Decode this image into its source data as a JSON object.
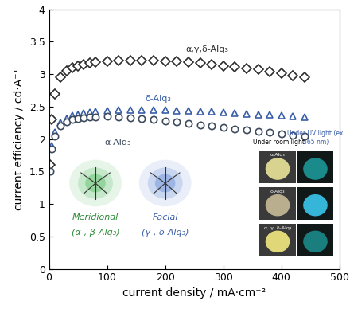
{
  "chart_data": {
    "type": "line",
    "x_label": "current density / mA·cm⁻²",
    "y_label": "current efficiency / cd·A⁻¹",
    "xlim": [
      0,
      500
    ],
    "xticks": [
      0,
      100,
      200,
      300,
      400,
      500
    ],
    "ylim": [
      0,
      4
    ],
    "yticks": [
      0,
      0.5,
      1,
      1.5,
      2,
      2.5,
      3,
      3.5,
      4
    ],
    "grid": false,
    "x": [
      2,
      5,
      10,
      20,
      30,
      40,
      50,
      60,
      70,
      80,
      100,
      120,
      140,
      160,
      180,
      200,
      220,
      240,
      260,
      280,
      300,
      320,
      340,
      360,
      380,
      400,
      420,
      440
    ],
    "series": [
      {
        "name": "α,γ,δ-Alq₃",
        "color": "#2b2b2b",
        "marker": "diamond",
        "values": [
          1.6,
          2.3,
          2.7,
          2.95,
          3.05,
          3.1,
          3.13,
          3.15,
          3.17,
          3.18,
          3.2,
          3.21,
          3.21,
          3.21,
          3.21,
          3.2,
          3.2,
          3.18,
          3.17,
          3.15,
          3.13,
          3.11,
          3.09,
          3.07,
          3.04,
          3.01,
          2.98,
          2.95
        ]
      },
      {
        "name": "δ-Alq₃",
        "color": "#3a5fa8",
        "marker": "triangle",
        "values": [
          1.5,
          1.9,
          2.1,
          2.25,
          2.32,
          2.36,
          2.38,
          2.4,
          2.41,
          2.42,
          2.44,
          2.45,
          2.45,
          2.45,
          2.45,
          2.45,
          2.44,
          2.44,
          2.43,
          2.42,
          2.41,
          2.4,
          2.39,
          2.38,
          2.37,
          2.36,
          2.35,
          2.34
        ]
      },
      {
        "name": "α-Alq₃",
        "color": "#3c4a5c",
        "marker": "circle",
        "values": [
          1.5,
          1.85,
          2.05,
          2.2,
          2.26,
          2.3,
          2.32,
          2.33,
          2.34,
          2.34,
          2.35,
          2.34,
          2.33,
          2.32,
          2.3,
          2.28,
          2.26,
          2.24,
          2.22,
          2.2,
          2.18,
          2.16,
          2.14,
          2.12,
          2.1,
          2.08,
          2.06,
          2.04
        ]
      }
    ],
    "annotations": [
      "Meridional",
      "(α-, β-Alq₃)",
      "Facial",
      "(γ-, δ-Alq₃)",
      "Under room light",
      "Under UV light (ex. 365 nm)",
      "α-Alq₃",
      "δ-Alq₃",
      "α, γ, δ-Alq₃"
    ]
  }
}
